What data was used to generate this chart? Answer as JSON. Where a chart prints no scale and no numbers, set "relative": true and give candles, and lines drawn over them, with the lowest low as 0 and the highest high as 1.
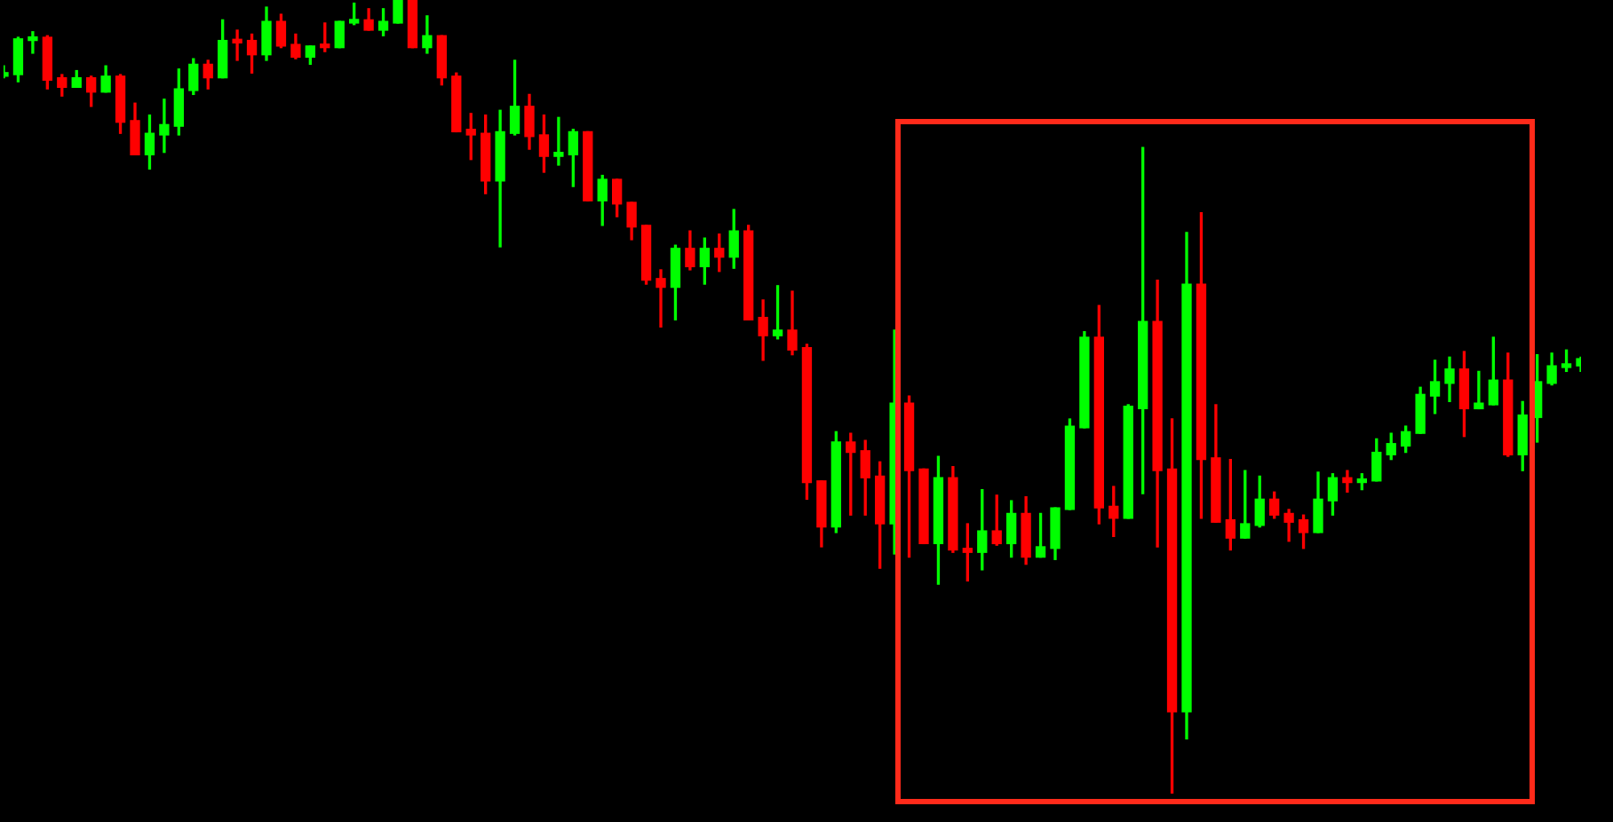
{
  "chart_data": {
    "type": "candlestick",
    "relative": true,
    "categories": [
      null,
      null,
      null,
      null,
      null,
      null,
      null,
      null,
      null,
      null,
      null,
      null,
      null,
      null,
      null,
      null,
      null,
      null,
      null,
      null,
      null,
      null,
      null,
      null,
      null,
      null,
      null,
      null,
      null,
      null,
      null,
      null,
      null,
      null,
      null,
      null,
      null,
      null,
      null,
      null,
      null,
      null,
      null,
      null,
      null,
      null,
      null,
      null,
      null,
      null,
      null,
      null,
      null,
      null,
      null,
      null,
      null,
      null,
      null,
      null,
      null,
      null,
      null,
      null,
      null,
      null,
      null,
      null,
      null,
      null,
      null,
      null,
      null,
      null,
      null,
      null,
      null,
      null,
      null,
      null,
      null,
      null,
      null,
      null,
      null,
      null,
      null,
      null,
      null,
      null,
      null,
      null,
      null,
      null,
      null,
      null,
      null,
      null,
      null,
      null,
      null,
      null,
      null,
      null,
      null,
      null,
      null,
      null,
      null
    ],
    "ohlc": [
      [
        0.904,
        0.917,
        0.902,
        0.908
      ],
      [
        0.906,
        0.953,
        0.897,
        0.951
      ],
      [
        0.949,
        0.96,
        0.933,
        0.953
      ],
      [
        0.953,
        0.955,
        0.888,
        0.899
      ],
      [
        0.902,
        0.906,
        0.879,
        0.89
      ],
      [
        0.89,
        0.911,
        0.89,
        0.902
      ],
      [
        0.902,
        0.904,
        0.866,
        0.884
      ],
      [
        0.884,
        0.917,
        0.884,
        0.904
      ],
      [
        0.904,
        0.906,
        0.832,
        0.846
      ],
      [
        0.848,
        0.87,
        0.805,
        0.805
      ],
      [
        0.805,
        0.855,
        0.787,
        0.832
      ],
      [
        0.83,
        0.875,
        0.808,
        0.843
      ],
      [
        0.841,
        0.913,
        0.83,
        0.888
      ],
      [
        0.886,
        0.926,
        0.881,
        0.919
      ],
      [
        0.919,
        0.924,
        0.888,
        0.902
      ],
      [
        0.902,
        0.975,
        0.902,
        0.949
      ],
      [
        0.949,
        0.962,
        0.924,
        0.946
      ],
      [
        0.949,
        0.957,
        0.908,
        0.931
      ],
      [
        0.931,
        0.991,
        0.924,
        0.973
      ],
      [
        0.973,
        0.982,
        0.94,
        0.942
      ],
      [
        0.944,
        0.957,
        0.926,
        0.928
      ],
      [
        0.928,
        0.942,
        0.919,
        0.942
      ],
      [
        0.942,
        0.971,
        0.935,
        0.94
      ],
      [
        0.94,
        0.973,
        0.94,
        0.973
      ],
      [
        0.971,
        0.996,
        0.969,
        0.975
      ],
      [
        0.975,
        0.989,
        0.962,
        0.962
      ],
      [
        0.962,
        0.989,
        0.955,
        0.973
      ],
      [
        0.971,
        1,
        0.971,
        1
      ],
      [
        1,
        1,
        0.94,
        0.94
      ],
      [
        0.94,
        0.98,
        0.933,
        0.955
      ],
      [
        0.955,
        0.955,
        0.893,
        0.902
      ],
      [
        0.904,
        0.908,
        0.834,
        0.834
      ],
      [
        0.837,
        0.857,
        0.799,
        0.83
      ],
      [
        0.832,
        0.855,
        0.756,
        0.772
      ],
      [
        0.772,
        0.861,
        0.689,
        0.834
      ],
      [
        0.832,
        0.924,
        0.83,
        0.866
      ],
      [
        0.866,
        0.881,
        0.812,
        0.828
      ],
      [
        0.83,
        0.855,
        0.783,
        0.803
      ],
      [
        0.803,
        0.852,
        0.792,
        0.808
      ],
      [
        0.805,
        0.837,
        0.765,
        0.834
      ],
      [
        0.834,
        0.834,
        0.747,
        0.747
      ],
      [
        0.747,
        0.779,
        0.716,
        0.774
      ],
      [
        0.774,
        0.774,
        0.727,
        0.743
      ],
      [
        0.745,
        0.745,
        0.698,
        0.714
      ],
      [
        0.716,
        0.716,
        0.642,
        0.647
      ],
      [
        0.649,
        0.66,
        0.588,
        0.638
      ],
      [
        0.638,
        0.691,
        0.597,
        0.687
      ],
      [
        0.687,
        0.709,
        0.66,
        0.664
      ],
      [
        0.664,
        0.7,
        0.642,
        0.687
      ],
      [
        0.687,
        0.705,
        0.658,
        0.676
      ],
      [
        0.676,
        0.736,
        0.662,
        0.709
      ],
      [
        0.709,
        0.716,
        0.597,
        0.597
      ],
      [
        0.6,
        0.622,
        0.546,
        0.577
      ],
      [
        0.577,
        0.64,
        0.573,
        0.584
      ],
      [
        0.584,
        0.633,
        0.553,
        0.559
      ],
      [
        0.562,
        0.566,
        0.371,
        0.392
      ],
      [
        0.394,
        0.394,
        0.311,
        0.336
      ],
      [
        0.336,
        0.456,
        0.329,
        0.443
      ],
      [
        0.443,
        0.454,
        0.351,
        0.43
      ],
      [
        0.432,
        0.445,
        0.351,
        0.398
      ],
      [
        0.4,
        0.418,
        0.284,
        0.34
      ],
      [
        0.34,
        0.584,
        0.302,
        0.492
      ],
      [
        0.492,
        0.501,
        0.298,
        0.407
      ],
      [
        0.409,
        0.409,
        0.315,
        0.315
      ],
      [
        0.315,
        0.425,
        0.264,
        0.398
      ],
      [
        0.398,
        0.412,
        0.304,
        0.307
      ],
      [
        0.309,
        0.34,
        0.268,
        0.304
      ],
      [
        0.304,
        0.383,
        0.282,
        0.331
      ],
      [
        0.331,
        0.376,
        0.313,
        0.315
      ],
      [
        0.315,
        0.369,
        0.298,
        0.353
      ],
      [
        0.353,
        0.374,
        0.289,
        0.298
      ],
      [
        0.298,
        0.353,
        0.298,
        0.311
      ],
      [
        0.309,
        0.36,
        0.295,
        0.36
      ],
      [
        0.358,
        0.472,
        0.358,
        0.463
      ],
      [
        0.461,
        0.582,
        0.461,
        0.575
      ],
      [
        0.575,
        0.615,
        0.34,
        0.36
      ],
      [
        0.362,
        0.387,
        0.324,
        0.347
      ],
      [
        0.347,
        0.49,
        0.347,
        0.488
      ],
      [
        0.485,
        0.814,
        0.378,
        0.595
      ],
      [
        0.595,
        0.647,
        0.311,
        0.407
      ],
      [
        0.409,
        0.472,
        0,
        0.103
      ],
      [
        0.103,
        0.707,
        0.069,
        0.642
      ],
      [
        0.642,
        0.732,
        0.347,
        0.421
      ],
      [
        0.423,
        0.49,
        0.342,
        0.342
      ],
      [
        0.345,
        0.421,
        0.307,
        0.322
      ],
      [
        0.322,
        0.407,
        0.322,
        0.34
      ],
      [
        0.338,
        0.4,
        0.336,
        0.371
      ],
      [
        0.371,
        0.38,
        0.347,
        0.351
      ],
      [
        0.353,
        0.358,
        0.318,
        0.342
      ],
      [
        0.345,
        0.351,
        0.309,
        0.329
      ],
      [
        0.329,
        0.405,
        0.329,
        0.371
      ],
      [
        0.369,
        0.403,
        0.351,
        0.398
      ],
      [
        0.398,
        0.407,
        0.38,
        0.392
      ],
      [
        0.392,
        0.403,
        0.383,
        0.396
      ],
      [
        0.394,
        0.447,
        0.394,
        0.43
      ],
      [
        0.427,
        0.454,
        0.421,
        0.441
      ],
      [
        0.438,
        0.463,
        0.43,
        0.456
      ],
      [
        0.454,
        0.512,
        0.454,
        0.503
      ],
      [
        0.501,
        0.546,
        0.479,
        0.519
      ],
      [
        0.517,
        0.55,
        0.494,
        0.535
      ],
      [
        0.535,
        0.557,
        0.45,
        0.485
      ],
      [
        0.485,
        0.532,
        0.485,
        0.492
      ],
      [
        0.49,
        0.575,
        0.49,
        0.521
      ],
      [
        0.521,
        0.555,
        0.425,
        0.427
      ],
      [
        0.427,
        0.494,
        0.407,
        0.477
      ],
      [
        0.474,
        0.553,
        0.443,
        0.519
      ],
      [
        0.517,
        0.555,
        0.515,
        0.539
      ],
      [
        0.537,
        0.559,
        0.532,
        0.541
      ],
      [
        0.539,
        0.55,
        0.532,
        0.548
      ]
    ],
    "colors": [
      "#00ff00",
      "#00ff00",
      "#00ff00",
      "#ff0000",
      "#ff0000",
      "#00ff00",
      "#ff0000",
      "#00ff00",
      "#ff0000",
      "#ff0000",
      "#00ff00",
      "#00ff00",
      "#00ff00",
      "#00ff00",
      "#ff0000",
      "#00ff00",
      "#ff0000",
      "#ff0000",
      "#00ff00",
      "#ff0000",
      "#ff0000",
      "#00ff00",
      "#ff0000",
      "#00ff00",
      "#00ff00",
      "#ff0000",
      "#00ff00",
      "#00ff00",
      "#ff0000",
      "#00ff00",
      "#ff0000",
      "#ff0000",
      "#ff0000",
      "#ff0000",
      "#00ff00",
      "#00ff00",
      "#ff0000",
      "#ff0000",
      "#00ff00",
      "#00ff00",
      "#ff0000",
      "#00ff00",
      "#ff0000",
      "#ff0000",
      "#ff0000",
      "#ff0000",
      "#00ff00",
      "#ff0000",
      "#00ff00",
      "#ff0000",
      "#00ff00",
      "#ff0000",
      "#ff0000",
      "#00ff00",
      "#ff0000",
      "#ff0000",
      "#ff0000",
      "#00ff00",
      "#ff0000",
      "#ff0000",
      "#ff0000",
      "#00ff00",
      "#ff0000",
      "#ff0000",
      "#00ff00",
      "#ff0000",
      "#ff0000",
      "#00ff00",
      "#ff0000",
      "#00ff00",
      "#ff0000",
      "#00ff00",
      "#00ff00",
      "#00ff00",
      "#00ff00",
      "#ff0000",
      "#ff0000",
      "#00ff00",
      "#00ff00",
      "#ff0000",
      "#ff0000",
      "#00ff00",
      "#ff0000",
      "#ff0000",
      "#ff0000",
      "#00ff00",
      "#00ff00",
      "#ff0000",
      "#ff0000",
      "#ff0000",
      "#00ff00",
      "#00ff00",
      "#ff0000",
      "#00ff00",
      "#00ff00",
      "#00ff00",
      "#00ff00",
      "#00ff00",
      "#00ff00",
      "#00ff00",
      "#ff0000",
      "#00ff00",
      "#00ff00",
      "#ff0000",
      "#00ff00",
      "#00ff00",
      "#00ff00",
      "#00ff00",
      "#00ff00"
    ]
  }
}
